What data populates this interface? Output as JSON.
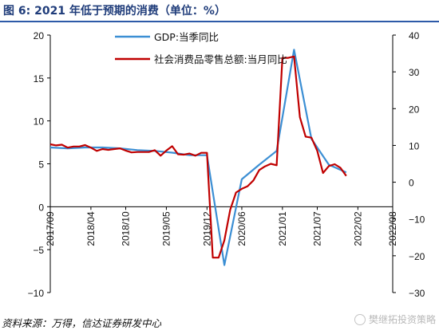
{
  "figure": {
    "title": "图 6:  2021 年低于预期的消费（单位：%）",
    "source_note": "资料来源：万得，信达证券研发中心",
    "watermark": "樊继拓投资策略",
    "watermark_icon": "wechat-logo-icon"
  },
  "colors": {
    "gdp": "#3c8fd4",
    "retail": "#c00000",
    "axis": "#000000",
    "title": "#1f3c7a",
    "title_rule": "#2d5aa8"
  },
  "chart_data": {
    "type": "line",
    "title": "",
    "xlabel": "",
    "ylabel_left": "",
    "ylabel_right": "",
    "x_tick_labels": [
      "2017/09",
      "2018/04",
      "2018/10",
      "2019/05",
      "2019/12",
      "2020/06",
      "2021/01",
      "2021/07",
      "2022/02",
      "2022/08"
    ],
    "x_range": [
      "2017-09",
      "2022-08"
    ],
    "y_left": {
      "range": [
        -10,
        20
      ],
      "ticks": [
        -10,
        -5,
        0,
        5,
        10,
        15,
        20
      ]
    },
    "y_right": {
      "range": [
        -30,
        40
      ],
      "ticks": [
        -30,
        -20,
        -10,
        0,
        10,
        20,
        30,
        40
      ]
    },
    "grid": false,
    "legend_position": "top-left",
    "series": [
      {
        "name": "GDP:当季同比",
        "axis": "left",
        "points": [
          [
            "2017-09",
            6.9
          ],
          [
            "2017-12",
            6.8
          ],
          [
            "2018-03",
            6.9
          ],
          [
            "2018-06",
            6.9
          ],
          [
            "2018-09",
            6.8
          ],
          [
            "2018-12",
            6.6
          ],
          [
            "2019-03",
            6.5
          ],
          [
            "2019-06",
            6.3
          ],
          [
            "2019-09",
            6.0
          ],
          [
            "2019-12",
            6.0
          ],
          [
            "2020-03",
            -6.8
          ],
          [
            "2020-06",
            3.2
          ],
          [
            "2020-09",
            4.9
          ],
          [
            "2020-12",
            6.5
          ],
          [
            "2021-03",
            18.3
          ],
          [
            "2021-06",
            7.9
          ],
          [
            "2021-09",
            4.9
          ],
          [
            "2021-12",
            4.0
          ]
        ]
      },
      {
        "name": "社会消费品零售总额:当月同比",
        "axis": "right",
        "points": [
          [
            "2017-09",
            10.3
          ],
          [
            "2017-10",
            10.0
          ],
          [
            "2017-11",
            10.2
          ],
          [
            "2017-12",
            9.4
          ],
          [
            "2018-01",
            9.7
          ],
          [
            "2018-02",
            9.7
          ],
          [
            "2018-03",
            10.1
          ],
          [
            "2018-04",
            9.4
          ],
          [
            "2018-05",
            8.5
          ],
          [
            "2018-06",
            9.0
          ],
          [
            "2018-07",
            8.8
          ],
          [
            "2018-08",
            9.0
          ],
          [
            "2018-09",
            9.2
          ],
          [
            "2018-10",
            8.6
          ],
          [
            "2018-11",
            8.1
          ],
          [
            "2018-12",
            8.2
          ],
          [
            "2019-01",
            8.2
          ],
          [
            "2019-02",
            8.2
          ],
          [
            "2019-03",
            8.7
          ],
          [
            "2019-04",
            7.2
          ],
          [
            "2019-05",
            8.6
          ],
          [
            "2019-06",
            9.8
          ],
          [
            "2019-07",
            7.6
          ],
          [
            "2019-08",
            7.5
          ],
          [
            "2019-09",
            7.8
          ],
          [
            "2019-10",
            7.2
          ],
          [
            "2019-11",
            8.0
          ],
          [
            "2019-12",
            8.0
          ],
          [
            "2020-01",
            -20.5
          ],
          [
            "2020-02",
            -20.5
          ],
          [
            "2020-03",
            -15.8
          ],
          [
            "2020-04",
            -7.5
          ],
          [
            "2020-05",
            -2.8
          ],
          [
            "2020-06",
            -1.8
          ],
          [
            "2020-07",
            -1.1
          ],
          [
            "2020-08",
            0.5
          ],
          [
            "2020-09",
            3.3
          ],
          [
            "2020-10",
            4.3
          ],
          [
            "2020-11",
            5.0
          ],
          [
            "2020-12",
            4.6
          ],
          [
            "2021-01",
            33.8
          ],
          [
            "2021-02",
            33.8
          ],
          [
            "2021-03",
            34.2
          ],
          [
            "2021-04",
            17.7
          ],
          [
            "2021-05",
            12.4
          ],
          [
            "2021-06",
            12.1
          ],
          [
            "2021-07",
            8.5
          ],
          [
            "2021-08",
            2.5
          ],
          [
            "2021-09",
            4.4
          ],
          [
            "2021-10",
            4.9
          ],
          [
            "2021-11",
            3.9
          ],
          [
            "2021-12",
            1.7
          ]
        ]
      }
    ]
  }
}
